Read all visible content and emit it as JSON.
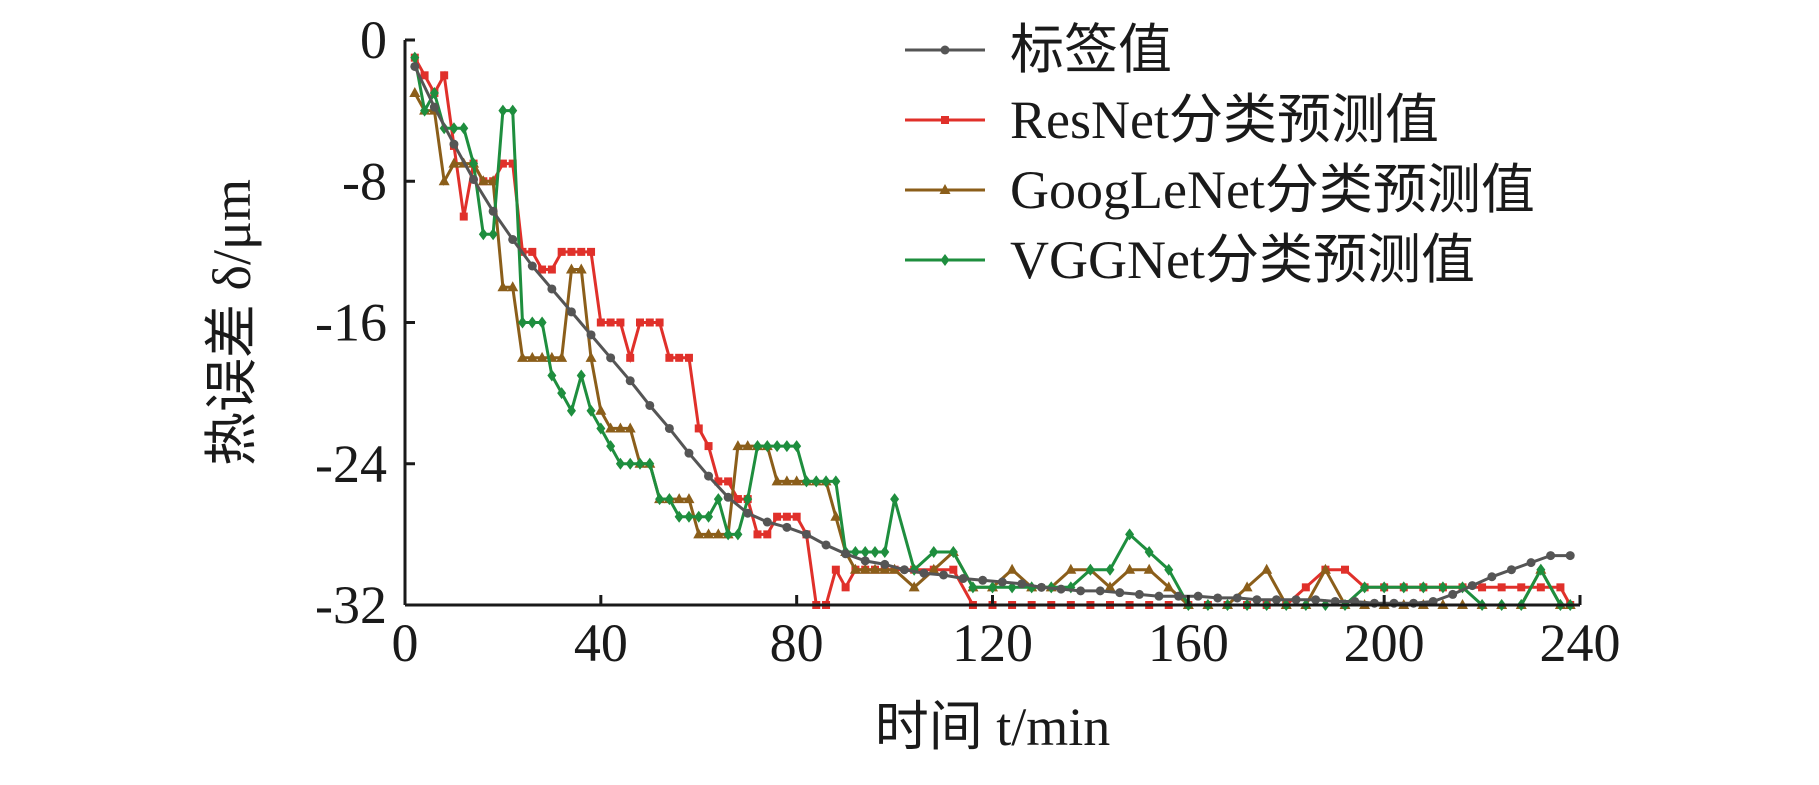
{
  "chart_data": {
    "type": "line",
    "xlabel": "时间 t/min",
    "ylabel": "热误差 δ/μm",
    "xlim": [
      0,
      240
    ],
    "ylim": [
      -32,
      0
    ],
    "xticks": [
      "0",
      "40",
      "80",
      "120",
      "160",
      "200",
      "240"
    ],
    "yticks": [
      "0",
      "-8",
      "-16",
      "-24",
      "-32"
    ],
    "legend_position": "top-right",
    "series": [
      {
        "name": "标签值",
        "color": "#555555",
        "marker": "circle",
        "x": [
          2,
          6,
          10,
          14,
          18,
          22,
          26,
          30,
          34,
          38,
          42,
          46,
          50,
          54,
          58,
          62,
          66,
          70,
          74,
          78,
          82,
          86,
          90,
          94,
          98,
          102,
          106,
          110,
          114,
          118,
          122,
          126,
          130,
          134,
          138,
          142,
          146,
          150,
          154,
          158,
          162,
          166,
          170,
          174,
          178,
          182,
          186,
          190,
          194,
          198,
          202,
          206,
          210,
          214,
          218,
          222,
          226,
          230,
          234,
          238
        ],
        "y": [
          -1.5,
          -3.8,
          -5.9,
          -7.9,
          -9.7,
          -11.3,
          -12.8,
          -14.1,
          -15.4,
          -16.7,
          -18.0,
          -19.3,
          -20.7,
          -22.0,
          -23.4,
          -24.7,
          -25.9,
          -26.8,
          -27.3,
          -27.6,
          -28.0,
          -28.6,
          -29.1,
          -29.5,
          -29.7,
          -30.0,
          -30.2,
          -30.3,
          -30.5,
          -30.6,
          -30.7,
          -30.8,
          -31.0,
          -31.1,
          -31.2,
          -31.2,
          -31.3,
          -31.4,
          -31.5,
          -31.5,
          -31.5,
          -31.6,
          -31.6,
          -31.7,
          -31.7,
          -31.7,
          -31.7,
          -31.8,
          -31.8,
          -31.9,
          -31.9,
          -31.9,
          -31.8,
          -31.4,
          -30.9,
          -30.4,
          -30.0,
          -29.6,
          -29.2,
          -29.2
        ]
      },
      {
        "name": "ResNet分类预测值",
        "color": "#e0302a",
        "marker": "square",
        "x": [
          2,
          4,
          6,
          8,
          10,
          12,
          14,
          16,
          18,
          20,
          22,
          24,
          26,
          28,
          30,
          32,
          34,
          36,
          38,
          40,
          42,
          44,
          46,
          48,
          50,
          52,
          54,
          56,
          58,
          60,
          62,
          64,
          66,
          68,
          70,
          72,
          74,
          76,
          78,
          80,
          82,
          84,
          86,
          88,
          90,
          92,
          94,
          96,
          98,
          100,
          104,
          108,
          112,
          116,
          120,
          124,
          128,
          132,
          136,
          140,
          144,
          148,
          152,
          156,
          160,
          164,
          168,
          172,
          176,
          180,
          184,
          188,
          192,
          196,
          200,
          204,
          208,
          212,
          216,
          220,
          224,
          228,
          232,
          236,
          238
        ],
        "y": [
          -1,
          -2,
          -3,
          -2,
          -6,
          -10,
          -7,
          -8,
          -8,
          -7,
          -7,
          -12,
          -12,
          -13,
          -13,
          -12,
          -12,
          -12,
          -12,
          -16,
          -16,
          -16,
          -18,
          -16,
          -16,
          -16,
          -18,
          -18,
          -18,
          -22,
          -23,
          -25,
          -25,
          -26,
          -26,
          -28,
          -28,
          -27,
          -27,
          -27,
          -28,
          -32,
          -32,
          -30,
          -31,
          -30,
          -30,
          -30,
          -30,
          -30,
          -30,
          -30,
          -30,
          -32,
          -32,
          -32,
          -32,
          -32,
          -32,
          -32,
          -32,
          -32,
          -32,
          -32,
          -32,
          -32,
          -32,
          -32,
          -32,
          -32,
          -31,
          -30,
          -30,
          -31,
          -31,
          -31,
          -31,
          -31,
          -31,
          -31,
          -31,
          -31,
          -31,
          -31,
          -32
        ]
      },
      {
        "name": "GoogLeNet分类预测值",
        "color": "#8b5e1a",
        "marker": "triangle",
        "x": [
          2,
          4,
          6,
          8,
          10,
          12,
          14,
          16,
          18,
          20,
          22,
          24,
          26,
          28,
          30,
          32,
          34,
          36,
          38,
          40,
          42,
          44,
          46,
          48,
          50,
          52,
          54,
          56,
          58,
          60,
          62,
          64,
          66,
          68,
          70,
          72,
          74,
          76,
          78,
          80,
          82,
          84,
          86,
          88,
          90,
          92,
          94,
          96,
          98,
          100,
          104,
          108,
          112,
          116,
          120,
          124,
          128,
          132,
          136,
          140,
          144,
          148,
          152,
          156,
          160,
          164,
          168,
          172,
          176,
          180,
          184,
          188,
          192,
          196,
          200,
          204,
          208,
          212,
          216,
          220,
          224,
          228,
          232,
          236,
          238
        ],
        "y": [
          -3,
          -4,
          -4,
          -8,
          -7,
          -7,
          -7,
          -8,
          -8,
          -14,
          -14,
          -18,
          -18,
          -18,
          -18,
          -18,
          -13,
          -13,
          -18,
          -21,
          -22,
          -22,
          -22,
          -24,
          -24,
          -26,
          -26,
          -26,
          -26,
          -28,
          -28,
          -28,
          -28,
          -23,
          -23,
          -23,
          -23,
          -25,
          -25,
          -25,
          -25,
          -25,
          -25,
          -27,
          -29,
          -30,
          -30,
          -30,
          -30,
          -30,
          -31,
          -30,
          -29,
          -31,
          -31,
          -30,
          -31,
          -31,
          -30,
          -30,
          -31,
          -30,
          -30,
          -31,
          -32,
          -32,
          -32,
          -31,
          -30,
          -32,
          -32,
          -30,
          -32,
          -32,
          -32,
          -32,
          -32,
          -32,
          -32,
          -32,
          -32,
          -32,
          -30,
          -32,
          -32
        ]
      },
      {
        "name": "VGGNet分类预测值",
        "color": "#1e8e3e",
        "marker": "diamond",
        "x": [
          2,
          4,
          6,
          8,
          10,
          12,
          14,
          16,
          18,
          20,
          22,
          24,
          26,
          28,
          30,
          32,
          34,
          36,
          38,
          40,
          42,
          44,
          46,
          48,
          50,
          52,
          54,
          56,
          58,
          60,
          62,
          64,
          66,
          68,
          70,
          72,
          74,
          76,
          78,
          80,
          82,
          84,
          86,
          88,
          90,
          92,
          94,
          96,
          98,
          100,
          104,
          108,
          112,
          116,
          120,
          124,
          128,
          132,
          136,
          140,
          144,
          148,
          152,
          156,
          160,
          164,
          168,
          172,
          176,
          180,
          184,
          188,
          192,
          196,
          200,
          204,
          208,
          212,
          216,
          220,
          224,
          228,
          232,
          236,
          238
        ],
        "y": [
          -1,
          -4,
          -3,
          -5,
          -5,
          -5,
          -7,
          -11,
          -11,
          -4,
          -4,
          -16,
          -16,
          -16,
          -19,
          -20,
          -21,
          -19,
          -21,
          -22,
          -23,
          -24,
          -24,
          -24,
          -24,
          -26,
          -26,
          -27,
          -27,
          -27,
          -27,
          -26,
          -28,
          -28,
          -26,
          -23,
          -23,
          -23,
          -23,
          -23,
          -25,
          -25,
          -25,
          -25,
          -29,
          -29,
          -29,
          -29,
          -29,
          -26,
          -30,
          -29,
          -29,
          -31,
          -31,
          -31,
          -31,
          -31,
          -31,
          -30,
          -30,
          -28,
          -29,
          -30,
          -32,
          -32,
          -32,
          -32,
          -32,
          -32,
          -32,
          -32,
          -32,
          -31,
          -31,
          -31,
          -31,
          -31,
          -31,
          -32,
          -32,
          -32,
          -30,
          -32,
          -32
        ]
      }
    ]
  }
}
